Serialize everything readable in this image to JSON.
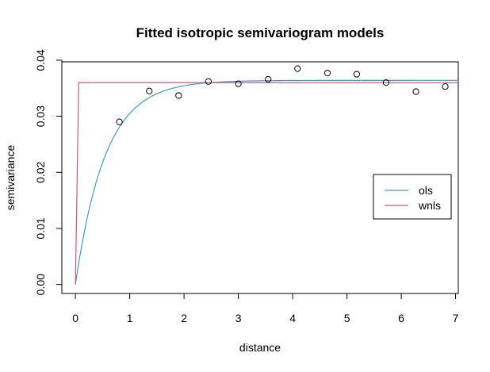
{
  "chart_data": {
    "type": "scatter",
    "title": "Fitted isotropic semivariogram models",
    "xlabel": "distance",
    "ylabel": "semivariance",
    "xlim": [
      -0.25,
      7.05
    ],
    "ylim": [
      -0.0016,
      0.0397
    ],
    "x_ticks": [
      0,
      1,
      2,
      3,
      4,
      5,
      6,
      7
    ],
    "x_tick_labels": [
      "0",
      "1",
      "2",
      "3",
      "4",
      "5",
      "6",
      "7"
    ],
    "y_ticks": [
      0.0,
      0.01,
      0.02,
      0.03,
      0.04
    ],
    "y_tick_labels": [
      "0.00",
      "0.01",
      "0.02",
      "0.03",
      "0.04"
    ],
    "grid": false,
    "points": {
      "x": [
        0.81,
        1.36,
        1.9,
        2.45,
        3.0,
        3.55,
        4.09,
        4.64,
        5.18,
        5.72,
        6.27,
        6.81
      ],
      "y": [
        0.029,
        0.0345,
        0.0337,
        0.0362,
        0.0358,
        0.0366,
        0.0385,
        0.0377,
        0.0375,
        0.036,
        0.0344,
        0.0353
      ]
    },
    "series": [
      {
        "name": "ols",
        "color": "#3B9AD6",
        "model": "exponential",
        "sill": 0.0364,
        "range": 0.55
      },
      {
        "name": "wnls",
        "color": "#D0587A",
        "model": "step",
        "sill": 0.036,
        "break": 0.06
      }
    ],
    "legend": {
      "position": "right",
      "entries": [
        {
          "label": "ols",
          "color": "#3B9AD6"
        },
        {
          "label": "wnls",
          "color": "#D0587A"
        }
      ]
    }
  }
}
